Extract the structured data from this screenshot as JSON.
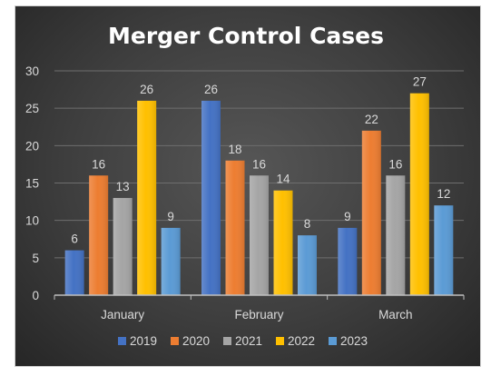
{
  "chart_data": {
    "type": "bar",
    "title": "Merger Control Cases",
    "categories": [
      "January",
      "February",
      "March"
    ],
    "series": [
      {
        "name": "2019",
        "values": [
          6,
          26,
          9
        ],
        "color": "#4472C4"
      },
      {
        "name": "2020",
        "values": [
          16,
          18,
          22
        ],
        "color": "#ED7D31"
      },
      {
        "name": "2021",
        "values": [
          13,
          16,
          16
        ],
        "color": "#A5A5A5"
      },
      {
        "name": "2022",
        "values": [
          26,
          14,
          27
        ],
        "color": "#FFC000"
      },
      {
        "name": "2023",
        "values": [
          9,
          8,
          12
        ],
        "color": "#5B9BD5"
      }
    ],
    "ylim": [
      0,
      30
    ],
    "yticks": [
      0,
      5,
      10,
      15,
      20,
      25,
      30
    ],
    "grid": true,
    "legend": "bottom",
    "data_labels": true
  }
}
